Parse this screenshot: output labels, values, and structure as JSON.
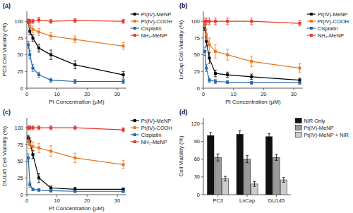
{
  "chart_data": [
    {
      "type": "line",
      "title": "(a)",
      "xlabel": "Pt Concentration (μM)",
      "ylabel": "PC3 Cell Viability (%)",
      "x": [
        0.5,
        1,
        2,
        4,
        8,
        16,
        32
      ],
      "xlim": [
        0,
        33
      ],
      "xticks": [
        0,
        10,
        20,
        30
      ],
      "ylim": [
        0,
        115
      ],
      "yticks": [
        0,
        25,
        50,
        75,
        100
      ],
      "grid": false,
      "legend": "upper right",
      "marker": "square",
      "series": [
        {
          "name": "Pt(IV)-MeNP",
          "color": "#000000",
          "values": [
            100,
            85,
            75,
            60,
            50,
            35,
            20
          ],
          "errors": [
            3,
            5,
            5,
            6,
            7,
            6,
            5
          ]
        },
        {
          "name": "Pt(IV)-COOH",
          "color": "#E87722",
          "values": [
            100,
            92,
            88,
            84,
            78,
            73,
            63
          ],
          "errors": [
            3,
            4,
            5,
            5,
            5,
            5,
            5
          ]
        },
        {
          "name": "Cisplatin",
          "color": "#2166AC",
          "values": [
            65,
            50,
            30,
            20,
            12,
            10,
            10
          ],
          "errors": [
            5,
            6,
            5,
            4,
            3,
            3,
            3
          ]
        },
        {
          "name": "NH₂-MeNP",
          "color": "#E8352A",
          "values": [
            100,
            100,
            100,
            102,
            100,
            101,
            100
          ],
          "errors": [
            3,
            3,
            3,
            4,
            3,
            3,
            3
          ]
        }
      ]
    },
    {
      "type": "line",
      "title": "(b)",
      "xlabel": "Pt Concentration (μM)",
      "ylabel": "LnCap Cell Viability (%)",
      "x": [
        0.5,
        1,
        2,
        4,
        8,
        16,
        32
      ],
      "xlim": [
        0,
        33
      ],
      "xticks": [
        0,
        10,
        20,
        30
      ],
      "ylim": [
        0,
        115
      ],
      "yticks": [
        0,
        25,
        50,
        75,
        100
      ],
      "grid": false,
      "legend": "upper right",
      "marker": "square",
      "series": [
        {
          "name": "Pt(IV)-MeNP",
          "color": "#000000",
          "values": [
            90,
            70,
            45,
            22,
            20,
            17,
            12
          ],
          "errors": [
            4,
            7,
            8,
            5,
            4,
            4,
            3
          ]
        },
        {
          "name": "Pt(IV)-COOH",
          "color": "#E87722",
          "values": [
            95,
            80,
            65,
            55,
            50,
            40,
            30
          ],
          "errors": [
            5,
            8,
            10,
            10,
            8,
            8,
            7
          ]
        },
        {
          "name": "Cisplatin",
          "color": "#2166AC",
          "values": [
            55,
            30,
            12,
            10,
            9,
            8,
            8
          ],
          "errors": [
            6,
            5,
            3,
            3,
            2,
            2,
            2
          ]
        },
        {
          "name": "NH₂-MeNP",
          "color": "#E8352A",
          "values": [
            100,
            100,
            100,
            100,
            100,
            100,
            97
          ],
          "errors": [
            5,
            5,
            5,
            5,
            5,
            5,
            4
          ]
        }
      ]
    },
    {
      "type": "line",
      "title": "(c)",
      "xlabel": "Pt Concentration (μM)",
      "ylabel": "DU145 Cell Viability (%)",
      "x": [
        0.5,
        1,
        2,
        4,
        8,
        16,
        32
      ],
      "xlim": [
        0,
        33
      ],
      "xticks": [
        0,
        10,
        20,
        30
      ],
      "ylim": [
        0,
        115
      ],
      "yticks": [
        0,
        25,
        50,
        75,
        100
      ],
      "grid": false,
      "legend": "upper right",
      "marker": "square",
      "series": [
        {
          "name": "Pt(IV)-MeNP",
          "color": "#000000",
          "values": [
            85,
            80,
            60,
            25,
            10,
            8,
            8
          ],
          "errors": [
            4,
            5,
            6,
            7,
            3,
            3,
            2
          ]
        },
        {
          "name": "Pt(IV)-COOH",
          "color": "#E87722",
          "values": [
            80,
            75,
            72,
            70,
            65,
            55,
            45
          ],
          "errors": [
            5,
            6,
            7,
            7,
            8,
            7,
            6
          ]
        },
        {
          "name": "Cisplatin",
          "color": "#2166AC",
          "values": [
            55,
            15,
            8,
            7,
            6,
            5,
            5
          ],
          "errors": [
            6,
            4,
            2,
            2,
            2,
            2,
            2
          ]
        },
        {
          "name": "NH₂-MeNP",
          "color": "#E8352A",
          "values": [
            100,
            100,
            100,
            100,
            100,
            100,
            97
          ],
          "errors": [
            3,
            3,
            3,
            3,
            3,
            3,
            3
          ]
        }
      ]
    },
    {
      "type": "bar",
      "title": "(d)",
      "ylabel": "Cell Viability (%)",
      "categories": [
        "PC3",
        "LnCap",
        "DU145"
      ],
      "ylim": [
        0,
        130
      ],
      "yticks": [
        0,
        30,
        60,
        90,
        120
      ],
      "grid": false,
      "legend": "upper right",
      "series": [
        {
          "name": "NIR Only",
          "color": "#111111",
          "values": [
            100,
            102,
            98
          ],
          "errors": [
            5,
            6,
            5
          ]
        },
        {
          "name": "Pt(IV)-MeNP",
          "color": "#999999",
          "values": [
            63,
            60,
            63
          ],
          "errors": [
            6,
            6,
            5
          ]
        },
        {
          "name": "Pt(IV)-MeNP + NIR",
          "color": "#CCCCCC",
          "values": [
            27,
            18,
            25
          ],
          "errors": [
            4,
            4,
            4
          ]
        }
      ]
    }
  ]
}
